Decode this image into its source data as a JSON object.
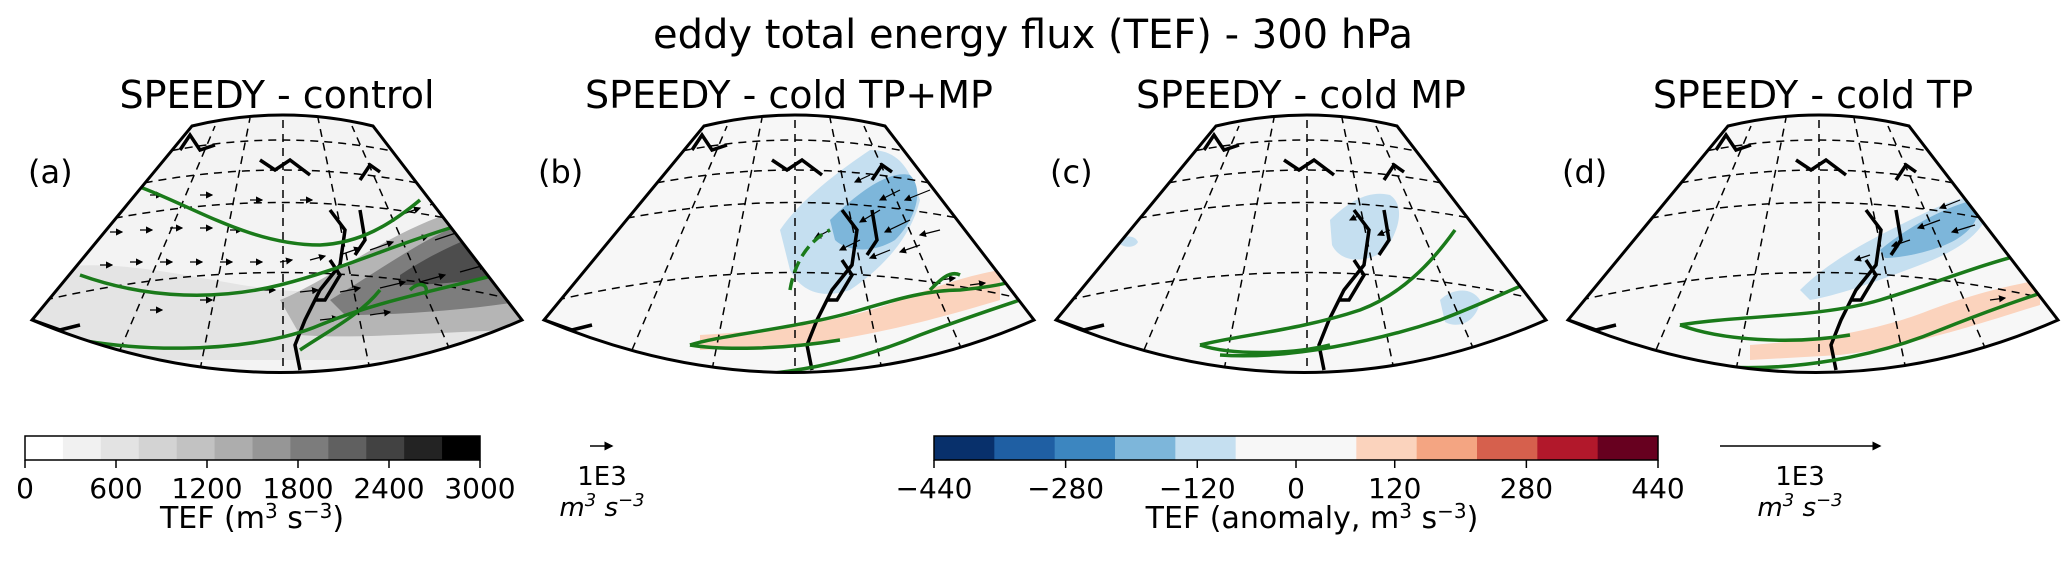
{
  "figure": {
    "title": "eddy total energy flux (TEF) - 300 hPa"
  },
  "chart_data": [
    {
      "type": "heatmap",
      "panel_label": "(a)",
      "title": "SPEEDY - control",
      "field": "TEF",
      "colormap": "grey",
      "tef_max_region": "east of Japan",
      "tef_peak_value_approx": 3000
    },
    {
      "type": "heatmap",
      "panel_label": "(b)",
      "title": "SPEEDY - cold TP+MP",
      "field": "TEF anomaly",
      "colormap": "RdBu_r",
      "negative_anomaly_min_approx": -280,
      "positive_anomaly_max_approx": 120
    },
    {
      "type": "heatmap",
      "panel_label": "(c)",
      "title": "SPEEDY - cold MP",
      "field": "TEF anomaly",
      "colormap": "RdBu_r",
      "negative_anomaly_min_approx": -120,
      "positive_anomaly_max_approx": 0
    },
    {
      "type": "heatmap",
      "panel_label": "(d)",
      "title": "SPEEDY - cold TP",
      "field": "TEF anomaly",
      "colormap": "RdBu_r",
      "negative_anomaly_min_approx": -280,
      "positive_anomaly_max_approx": 120
    }
  ],
  "colorbars": {
    "control": {
      "ticks": [
        "0",
        "600",
        "1200",
        "1800",
        "2400",
        "3000"
      ],
      "tick_values": [
        0,
        600,
        1200,
        1800,
        2400,
        3000
      ],
      "label_prefix": "TEF (m",
      "label_sup1": "3",
      "label_mid": " s",
      "label_sup2": "−3",
      "label_suffix": ")",
      "colors": [
        "#ffffff",
        "#f1f1f1",
        "#e3e3e3",
        "#d3d3d3",
        "#c2c2c2",
        "#adadad",
        "#969696",
        "#7c7c7c",
        "#606060",
        "#424242",
        "#232323",
        "#000000"
      ]
    },
    "anomaly": {
      "ticks": [
        "−440",
        "−280",
        "−120",
        "0",
        "120",
        "280",
        "440"
      ],
      "tick_values": [
        -440,
        -280,
        -120,
        0,
        120,
        280,
        440
      ],
      "label_prefix": "TEF (anomaly, m",
      "label_sup1": "3",
      "label_mid": " s",
      "label_sup2": "−3",
      "label_suffix": ")",
      "colors": [
        "#08306b",
        "#1f5fa3",
        "#3c86c0",
        "#7db6da",
        "#c5dff0",
        "#f7f7f7",
        "#f7f7f7",
        "#fbd3bd",
        "#f4a582",
        "#d6604d",
        "#b2182b",
        "#67001f"
      ]
    }
  },
  "quiver_keys": [
    {
      "value": "1E3",
      "unit_base": "m",
      "unit_sup1": "3",
      "unit_mid": " s",
      "unit_sup2": "−3"
    },
    {
      "value": "1E3",
      "unit_base": "m",
      "unit_sup1": "3",
      "unit_mid": " s",
      "unit_sup2": "−3"
    }
  ],
  "colors": {
    "contour": "#1a7a1a",
    "map_bg": "#f7f7f7",
    "coast": "#000000"
  }
}
